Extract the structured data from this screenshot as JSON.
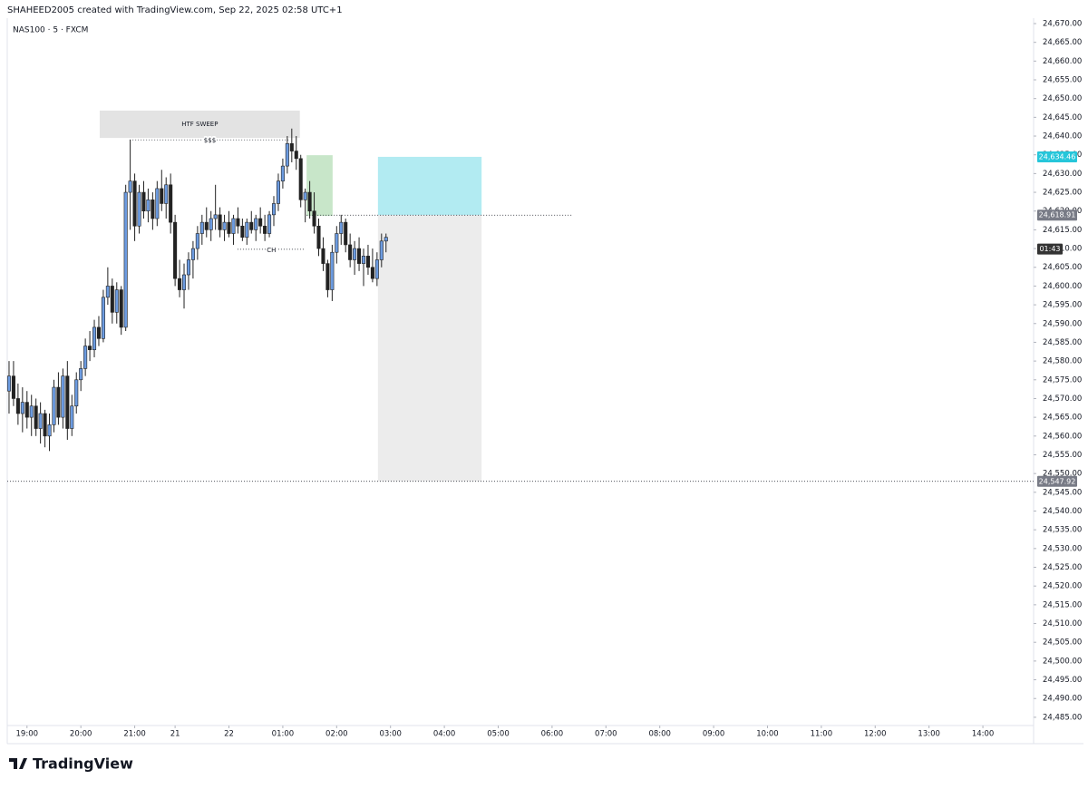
{
  "header": "SHAHEED2005 created with TradingView.com, Sep 22, 2025 02:58 UTC+1",
  "footer": "TradingView",
  "chart_data": {
    "type": "candlestick",
    "title": "NAS100 · 5 · FXCM",
    "up_color": "#6c9be0",
    "down_color": "#222222",
    "wick_color": "#222222",
    "open": [
      24572,
      24576,
      24570,
      24566,
      24569,
      24565,
      24568,
      24562,
      24566,
      24560,
      24563,
      24573,
      24565,
      24576,
      24562,
      24568,
      24575,
      24578,
      24584,
      24583,
      24589,
      24586,
      24597,
      24600,
      24593,
      24599,
      24589,
      24625,
      24628,
      24616,
      24625,
      24620,
      24623,
      24618,
      24626,
      24622,
      24627,
      24617,
      24602,
      24599,
      24603,
      24607,
      24610,
      24614,
      24617,
      24615,
      24618,
      24619,
      24615,
      24617,
      24614,
      24618,
      24616,
      24613,
      24617,
      24615,
      24618,
      24616,
      24614,
      24619,
      24622,
      24628,
      24632,
      24638,
      24636,
      24634,
      24623,
      24625,
      24620,
      24616,
      24610,
      24606,
      24599,
      24609,
      24614,
      24617,
      24611,
      24607,
      24610,
      24606,
      24608,
      24605,
      24602,
      24607,
      24612
    ],
    "high": [
      24580,
      24580,
      24574,
      24573,
      24572,
      24571,
      24570,
      24569,
      24567,
      24566,
      24575,
      24577,
      24578,
      24580,
      24571,
      24577,
      24580,
      24586,
      24588,
      24591,
      24592,
      24599,
      24605,
      24602,
      24601,
      24600,
      24627,
      24639,
      24630,
      24627,
      24628,
      24626,
      24625,
      24628,
      24631,
      24629,
      24630,
      24619,
      24607,
      24606,
      24609,
      24612,
      24616,
      24619,
      24621,
      24620,
      24627,
      24621,
      24619,
      24620,
      24619,
      24621,
      24618,
      24618,
      24620,
      24619,
      24621,
      24619,
      24620,
      24624,
      24630,
      24634,
      24640,
      24642,
      24640,
      24635,
      24626,
      24628,
      24625,
      24618,
      24613,
      24607,
      24611,
      24616,
      24619,
      24618,
      24614,
      24612,
      24613,
      24610,
      24611,
      24610,
      24609,
      24614,
      24614
    ],
    "low": [
      24566,
      24568,
      24563,
      24561,
      24562,
      24560,
      24560,
      24558,
      24557,
      24556,
      24561,
      24563,
      24562,
      24559,
      24560,
      24566,
      24572,
      24576,
      24580,
      24581,
      24584,
      24585,
      24595,
      24590,
      24590,
      24587,
      24588,
      24615,
      24612,
      24614,
      24618,
      24617,
      24615,
      24616,
      24620,
      24618,
      24614,
      24600,
      24597,
      24594,
      24599,
      24602,
      24607,
      24611,
      24613,
      24612,
      24615,
      24613,
      24612,
      24613,
      24611,
      24614,
      24612,
      24611,
      24614,
      24612,
      24614,
      24612,
      24613,
      24616,
      24620,
      24626,
      24630,
      24633,
      24631,
      24621,
      24617,
      24618,
      24614,
      24608,
      24604,
      24597,
      24596,
      24606,
      24611,
      24609,
      24605,
      24603,
      24604,
      24600,
      24603,
      24601,
      24600,
      24605,
      24609
    ],
    "close": [
      24576,
      24570,
      24566,
      24569,
      24565,
      24568,
      24562,
      24566,
      24560,
      24563,
      24573,
      24565,
      24576,
      24562,
      24568,
      24575,
      24578,
      24584,
      24583,
      24589,
      24586,
      24597,
      24600,
      24593,
      24599,
      24589,
      24625,
      24628,
      24616,
      24625,
      24620,
      24623,
      24618,
      24626,
      24622,
      24627,
      24617,
      24602,
      24599,
      24603,
      24607,
      24610,
      24614,
      24617,
      24615,
      24618,
      24619,
      24615,
      24617,
      24614,
      24618,
      24616,
      24613,
      24617,
      24615,
      24618,
      24616,
      24614,
      24619,
      24622,
      24628,
      24632,
      24638,
      24636,
      24634,
      24623,
      24625,
      24620,
      24616,
      24610,
      24606,
      24599,
      24609,
      24614,
      24617,
      24611,
      24607,
      24610,
      24606,
      24608,
      24605,
      24602,
      24607,
      24612,
      24613
    ],
    "xlim": [
      -0.4,
      228.3
    ],
    "xticks": [
      {
        "value": 4,
        "label": "19:00"
      },
      {
        "value": 16,
        "label": "20:00"
      },
      {
        "value": 28,
        "label": "21:00"
      },
      {
        "value": 37,
        "label": "21"
      },
      {
        "value": 49,
        "label": "22"
      },
      {
        "value": 61,
        "label": "01:00"
      },
      {
        "value": 73,
        "label": "02:00"
      },
      {
        "value": 85,
        "label": "03:00"
      },
      {
        "value": 97,
        "label": "04:00"
      },
      {
        "value": 109,
        "label": "05:00"
      },
      {
        "value": 121,
        "label": "06:00"
      },
      {
        "value": 133,
        "label": "07:00"
      },
      {
        "value": 145,
        "label": "08:00"
      },
      {
        "value": 157,
        "label": "09:00"
      },
      {
        "value": 169,
        "label": "10:00"
      },
      {
        "value": 181,
        "label": "11:00"
      },
      {
        "value": 193,
        "label": "12:00"
      },
      {
        "value": 205,
        "label": "13:00"
      },
      {
        "value": 217,
        "label": "14:00"
      }
    ],
    "ylim": [
      24482.8,
      24671.45
    ],
    "yticks": [
      {
        "value": 24670,
        "label": "24,670.00"
      },
      {
        "value": 24665,
        "label": "24,665.00"
      },
      {
        "value": 24660,
        "label": "24,660.00"
      },
      {
        "value": 24655,
        "label": "24,655.00"
      },
      {
        "value": 24650,
        "label": "24,650.00"
      },
      {
        "value": 24645,
        "label": "24,645.00"
      },
      {
        "value": 24640,
        "label": "24,640.00"
      },
      {
        "value": 24635,
        "label": "24,635.00"
      },
      {
        "value": 24630,
        "label": "24,630.00"
      },
      {
        "value": 24625,
        "label": "24,625.00"
      },
      {
        "value": 24620,
        "label": "24,620.00"
      },
      {
        "value": 24615,
        "label": "24,615.00"
      },
      {
        "value": 24610,
        "label": "24,610.00"
      },
      {
        "value": 24605,
        "label": "24,605.00"
      },
      {
        "value": 24600,
        "label": "24,600.00"
      },
      {
        "value": 24595,
        "label": "24,595.00"
      },
      {
        "value": 24590,
        "label": "24,590.00"
      },
      {
        "value": 24585,
        "label": "24,585.00"
      },
      {
        "value": 24580,
        "label": "24,580.00"
      },
      {
        "value": 24575,
        "label": "24,575.00"
      },
      {
        "value": 24570,
        "label": "24,570.00"
      },
      {
        "value": 24565,
        "label": "24,565.00"
      },
      {
        "value": 24560,
        "label": "24,560.00"
      },
      {
        "value": 24555,
        "label": "24,555.00"
      },
      {
        "value": 24550,
        "label": "24,550.00"
      },
      {
        "value": 24545,
        "label": "24,545.00"
      },
      {
        "value": 24540,
        "label": "24,540.00"
      },
      {
        "value": 24535,
        "label": "24,535.00"
      },
      {
        "value": 24530,
        "label": "24,530.00"
      },
      {
        "value": 24525,
        "label": "24,525.00"
      },
      {
        "value": 24520,
        "label": "24,520.00"
      },
      {
        "value": 24515,
        "label": "24,515.00"
      },
      {
        "value": 24510,
        "label": "24,510.00"
      },
      {
        "value": 24505,
        "label": "24,505.00"
      },
      {
        "value": 24500,
        "label": "24,500.00"
      },
      {
        "value": 24495,
        "label": "24,495.00"
      },
      {
        "value": 24490,
        "label": "24,490.00"
      },
      {
        "value": 24485,
        "label": "24,485.00"
      }
    ],
    "sweep_box": {
      "text": "HTF SWEEP",
      "top": 24646.8,
      "bottom": 24639.5,
      "from": 20.2,
      "to": 64.8,
      "color": "#e3e3e3"
    },
    "sweep_line": {
      "text": "$$$",
      "level": 24639.0,
      "from": 26.9,
      "to": 62.6
    },
    "ch_line": {
      "text": "CH",
      "level": 24609.8,
      "from": 50.9,
      "to": 66.0
    },
    "green_zone": {
      "top": 24634.9,
      "bottom": 24618.7,
      "from": 66.3,
      "to": 72.1,
      "color": "#c8e6c9"
    },
    "position": {
      "from": 82.2,
      "to": 105.3,
      "entry_line_to": 125.3,
      "values": [
        24634.46,
        24618.91,
        24547.92
      ],
      "value_labels": [
        "24,634.46",
        "24,618.91",
        "24,547.92"
      ],
      "colors": [
        "#b2ebf2",
        "#ececec"
      ],
      "label_colors": [
        "#26c6da",
        "#787b86",
        "#787b86"
      ]
    },
    "countdown": "01:43"
  }
}
